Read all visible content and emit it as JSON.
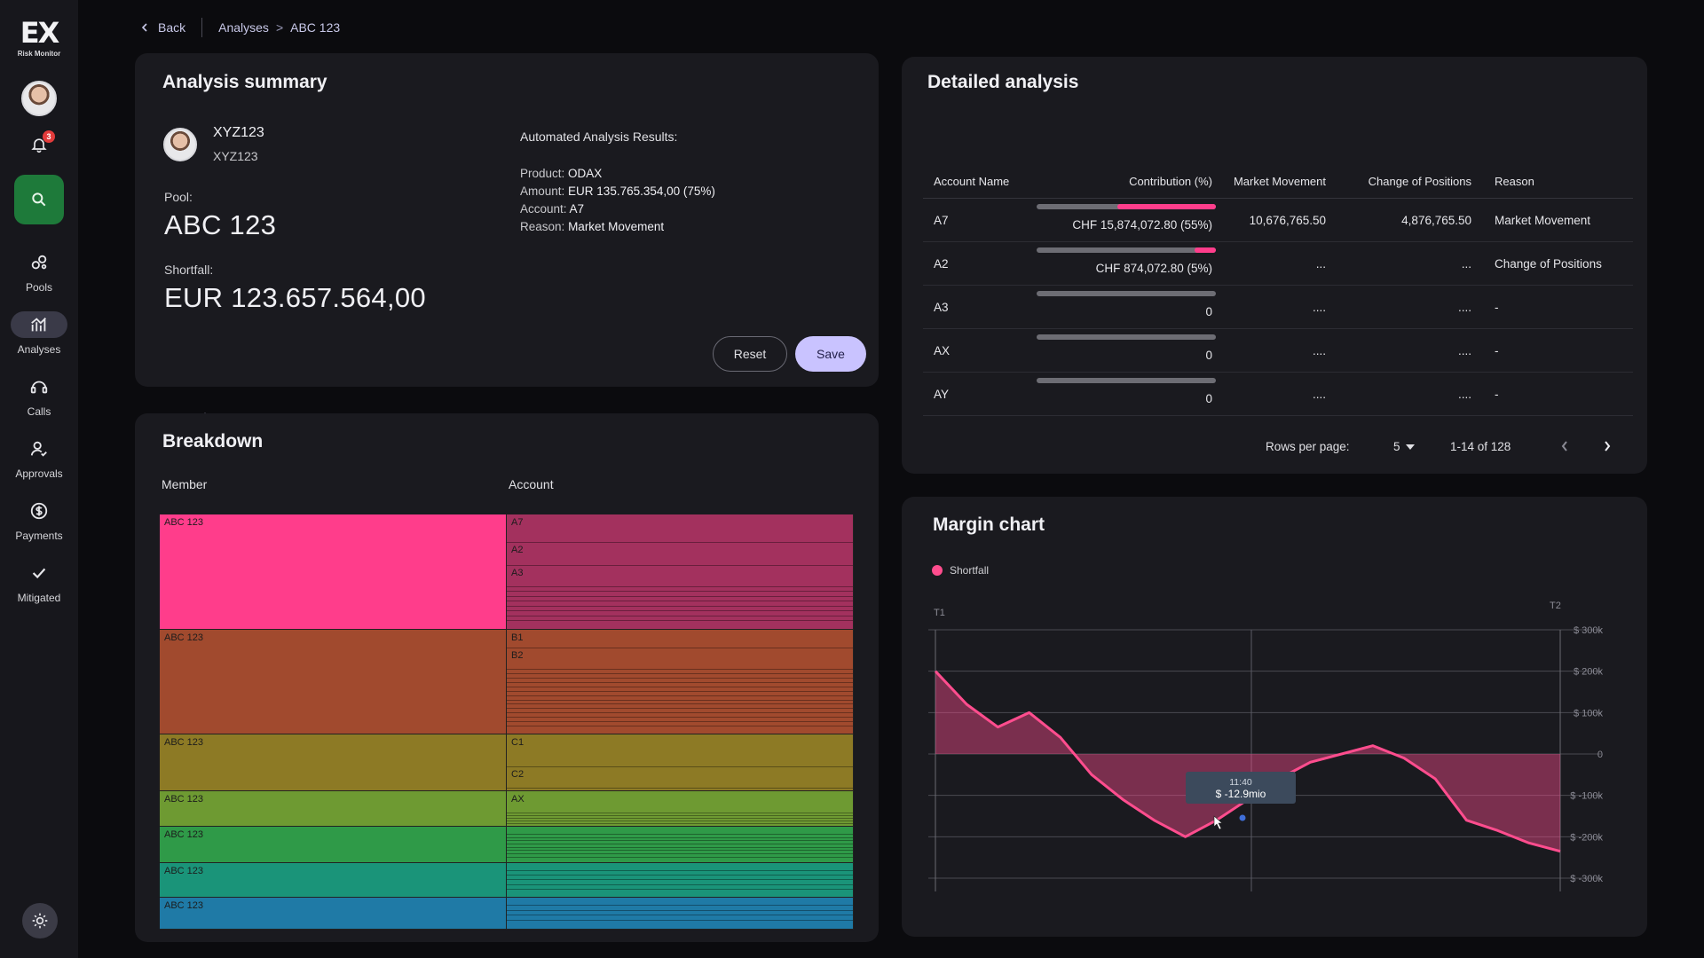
{
  "app": {
    "logo_text": "EX",
    "logo_sub": "Risk Monitor",
    "notification_count": "3"
  },
  "sidebar": {
    "items": [
      {
        "label": "Pools",
        "icon": "pools-icon"
      },
      {
        "label": "Analyses",
        "icon": "analyses-icon",
        "active": true
      },
      {
        "label": "Calls",
        "icon": "calls-icon"
      },
      {
        "label": "Approvals",
        "icon": "approvals-icon"
      },
      {
        "label": "Payments",
        "icon": "payments-icon"
      },
      {
        "label": "Mitigated",
        "icon": "mitigated-icon"
      }
    ]
  },
  "breadcrumb": {
    "back": "Back",
    "parent": "Analyses",
    "separator": ">",
    "current": "ABC 123"
  },
  "summary": {
    "title": "Analysis summary",
    "user_name": "XYZ123",
    "user_sub": "XYZ123",
    "pool_label": "Pool:",
    "pool_value": "ABC 123",
    "shortfall_label": "Shortfall:",
    "shortfall_value": "EUR 123.657.564,00",
    "auto_title": "Automated Analysis Results:",
    "product_label": "Product:",
    "product_value": "ODAX",
    "amount_label": "Amount:",
    "amount_value": "EUR 135.765.354,00 (75%)",
    "account_label": "Account:",
    "account_value": "A7",
    "reason_label": "Reason:",
    "reason_value": "Market Movement",
    "reset_label": "Reset",
    "save_label": "Save"
  },
  "breakdown": {
    "title": "Breakdown",
    "member_header": "Member",
    "account_header": "Account",
    "members": [
      {
        "label": "ABC 123",
        "color": "#ff3d8b",
        "accounts": [
          "A7",
          "A2",
          "A3"
        ],
        "acct_color": "#a3315e",
        "rows": [
          0,
          31,
          57
        ],
        "lines": 8
      },
      {
        "label": "ABC 123",
        "color": "#a14a2e",
        "accounts": [
          "B1",
          "B2"
        ],
        "acct_color": "#a14a2e",
        "rows": [
          0,
          20
        ],
        "lines": 14
      },
      {
        "label": "ABC 123",
        "color": "#8d7a25",
        "accounts": [
          "C1",
          "C2"
        ],
        "acct_color": "#8d7a25",
        "rows": [
          0,
          36
        ],
        "lines": 1
      },
      {
        "label": "ABC 123",
        "color": "#6e9a32",
        "accounts": [
          "AX"
        ],
        "acct_color": "#6e9a32",
        "rows": [
          0
        ],
        "lines": 6
      },
      {
        "label": "ABC 123",
        "color": "#2f9a48",
        "accounts": [],
        "acct_color": "#2f9a48",
        "rows": [],
        "lines": 8
      },
      {
        "label": "ABC 123",
        "color": "#1a9479",
        "accounts": [],
        "acct_color": "#1a9479",
        "rows": [],
        "lines": 5
      },
      {
        "label": "ABC 123",
        "color": "#1f7aa6",
        "accounts": [],
        "acct_color": "#1f7aa6",
        "rows": [],
        "lines": 4
      }
    ]
  },
  "detailed": {
    "title": "Detailed analysis",
    "columns": [
      "Account Name",
      "Contribution (%)",
      "Market Movement",
      "Change of Positions",
      "Reason"
    ],
    "rows": [
      {
        "account": "A7",
        "contribution": "CHF 15,874,072.80 (55%)",
        "share": 0.55,
        "market_movement": "10,676,765.50",
        "change_positions": "4,876,765.50",
        "reason": "Market Movement"
      },
      {
        "account": "A2",
        "contribution": "CHF 874,072.80 (5%)",
        "share": 0.05,
        "market_movement": "...",
        "change_positions": "...",
        "reason": "Change of Positions"
      },
      {
        "account": "A3",
        "contribution": "0",
        "share": 0,
        "market_movement": "....",
        "change_positions": "....",
        "reason": "-"
      },
      {
        "account": "AX",
        "contribution": "0",
        "share": 0,
        "market_movement": "....",
        "change_positions": "....",
        "reason": "-"
      },
      {
        "account": "AY",
        "contribution": "0",
        "share": 0,
        "market_movement": "....",
        "change_positions": "....",
        "reason": "-"
      }
    ],
    "rows_per_page_label": "Rows per page:",
    "rows_per_page_value": "5",
    "range": "1-14 of 128"
  },
  "margin": {
    "title": "Margin chart",
    "legend": "Shortfall",
    "t1": "T1",
    "t2": "T2",
    "tooltip_time": "11:40",
    "tooltip_value": "$ -12.9mio"
  },
  "chart_data": {
    "type": "area",
    "series": [
      {
        "name": "Shortfall",
        "color": "#ff4d8e",
        "values": [
          200,
          120,
          65,
          100,
          40,
          -50,
          -110,
          -160,
          -200,
          -160,
          -110,
          -60,
          -20,
          0,
          20,
          -10,
          -60,
          -160,
          -185,
          -215,
          -235
        ]
      }
    ],
    "ylim": [
      -300,
      300
    ],
    "yticks": [
      300,
      200,
      100,
      0,
      -100,
      -200,
      -300
    ],
    "ytick_labels": [
      "$ 300k",
      "$ 200k",
      "$ 100k",
      "0",
      "$ -100k",
      "$ -200k",
      "$ -300k"
    ],
    "grid": true,
    "legend_position": "top-left"
  }
}
